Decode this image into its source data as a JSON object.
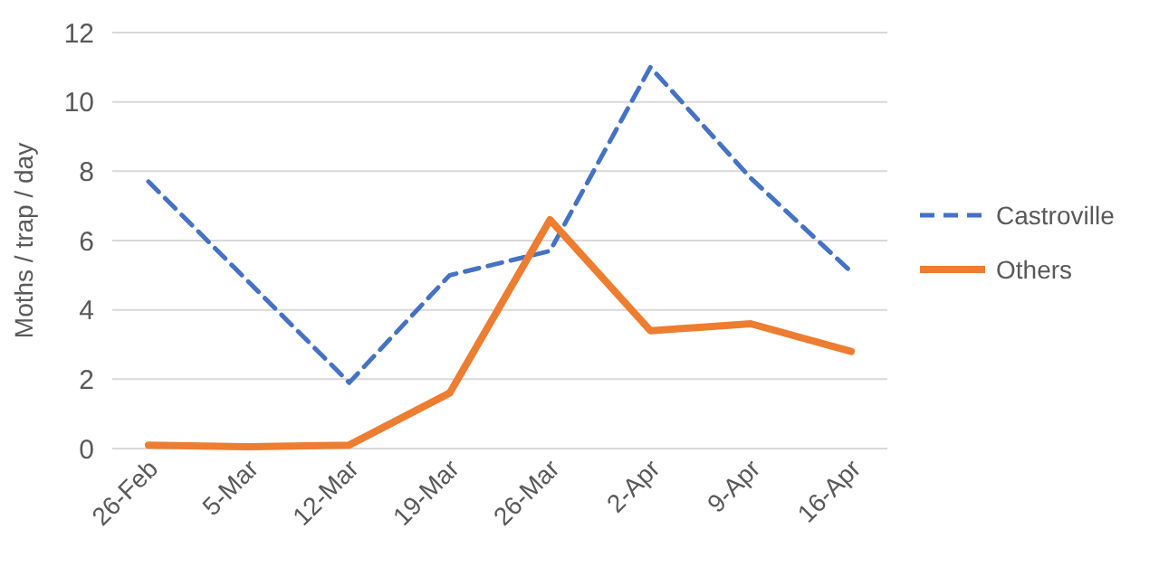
{
  "chart_data": {
    "type": "line",
    "ylabel": "Moths / trap / day",
    "categories": [
      "26-Feb",
      "5-Mar",
      "12-Mar",
      "19-Mar",
      "26-Mar",
      "2-Apr",
      "9-Apr",
      "16-Apr"
    ],
    "series": [
      {
        "name": "Castroville",
        "color": "#4472c4",
        "line_style": "dashed",
        "values": [
          7.7,
          4.8,
          1.9,
          5.0,
          5.7,
          11.0,
          7.8,
          5.1
        ]
      },
      {
        "name": "Others",
        "color": "#ed7d31",
        "line_style": "solid",
        "values": [
          0.1,
          0.05,
          0.1,
          1.6,
          6.6,
          3.4,
          3.6,
          2.8
        ]
      }
    ],
    "ylim": [
      0,
      12
    ],
    "yticks": [
      0,
      2,
      4,
      6,
      8,
      10,
      12
    ],
    "grid": "y",
    "legend": "right"
  }
}
